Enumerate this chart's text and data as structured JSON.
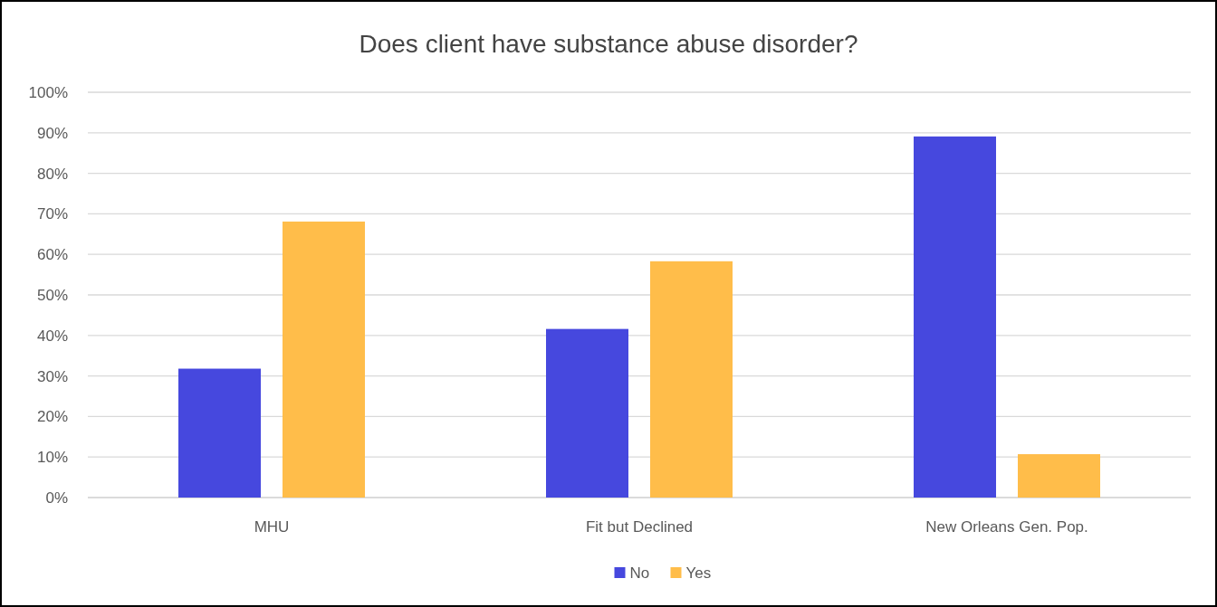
{
  "chart_data": {
    "type": "bar",
    "title": "Does client have substance abuse disorder?",
    "categories": [
      "MHU",
      "Fit but Declined",
      "New Orleans Gen. Pop."
    ],
    "series": [
      {
        "name": "No",
        "color": "#4648de",
        "values": [
          31.8,
          41.6,
          89.1
        ]
      },
      {
        "name": "Yes",
        "color": "#ffbd4a",
        "values": [
          68.1,
          58.3,
          10.7
        ]
      }
    ],
    "ylim": [
      0,
      100
    ],
    "yticks": [
      {
        "value": 0,
        "label": "0%"
      },
      {
        "value": 10,
        "label": "10%"
      },
      {
        "value": 20,
        "label": "20%"
      },
      {
        "value": 30,
        "label": "30%"
      },
      {
        "value": 40,
        "label": "40%"
      },
      {
        "value": 50,
        "label": "50%"
      },
      {
        "value": 60,
        "label": "60%"
      },
      {
        "value": 70,
        "label": "70%"
      },
      {
        "value": 80,
        "label": "80%"
      },
      {
        "value": 90,
        "label": "90%"
      },
      {
        "value": 100,
        "label": "100%"
      }
    ],
    "grid": "y",
    "legend": "bottom"
  }
}
